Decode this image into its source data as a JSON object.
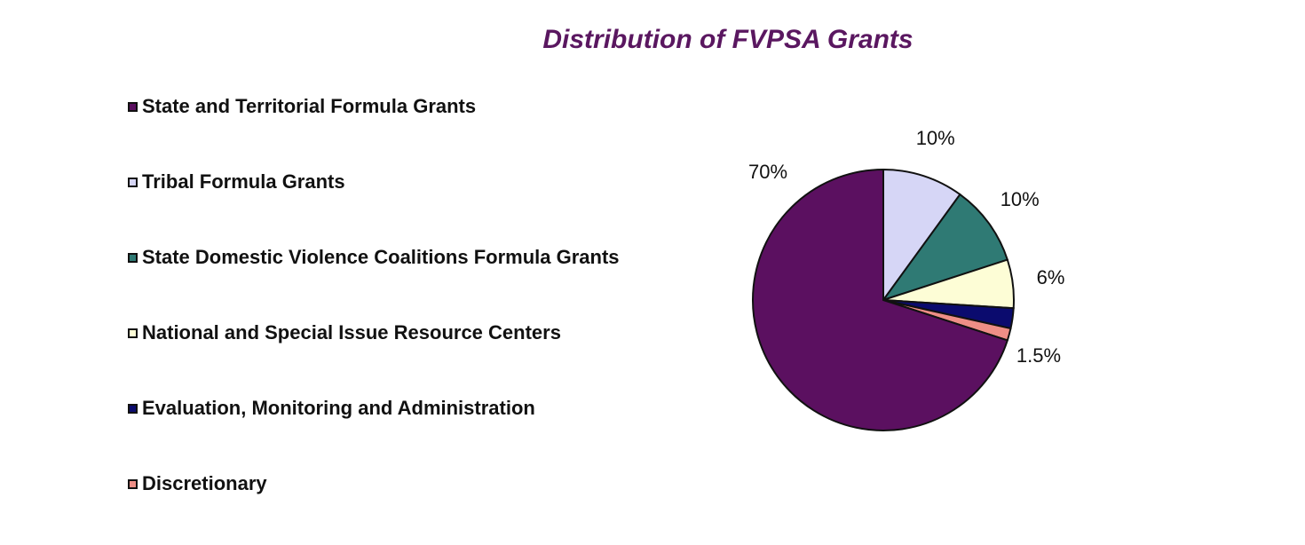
{
  "chart_data": {
    "type": "pie",
    "title": "Distribution of FVPSA Grants",
    "legend_position": "left",
    "slices": [
      {
        "label": "State and Territorial Formula Grants",
        "value": 70,
        "display": "70%",
        "color": "#5b1060"
      },
      {
        "label": "Tribal Formula Grants",
        "value": 10,
        "display": "10%",
        "color": "#d6d6f6"
      },
      {
        "label": "State Domestic Violence Coalitions Formula Grants",
        "value": 10,
        "display": "10%",
        "color": "#2f7a74"
      },
      {
        "label": "National and Special Issue Resource Centers",
        "value": 6,
        "display": "6%",
        "color": "#fdfdd6"
      },
      {
        "label": "Evaluation, Monitoring and Administration",
        "value": 2.5,
        "display": "",
        "color": "#0b0b6e"
      },
      {
        "label": "Discretionary",
        "value": 1.5,
        "display": "1.5%",
        "color": "#ee8e86"
      }
    ]
  }
}
